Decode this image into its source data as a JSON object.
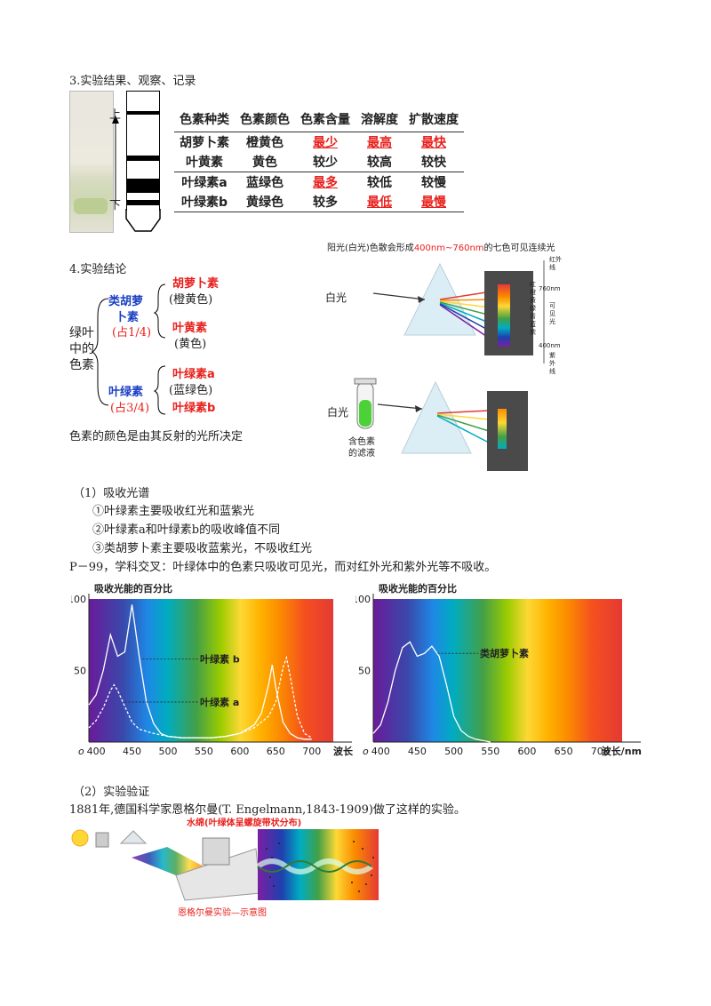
{
  "section3_title": "3.实验结果、观察、记录",
  "strip": {
    "top_label": "上",
    "bottom_label": "下"
  },
  "table": {
    "headers": [
      "色素种类",
      "色素颜色",
      "色素含量",
      "溶解度",
      "扩散速度"
    ],
    "rows": [
      [
        "胡萝卜素",
        "橙黄色",
        "最少",
        "最高",
        "最快"
      ],
      [
        "叶黄素",
        "黄色",
        "较少",
        "较高",
        "较快"
      ],
      [
        "叶绿素a",
        "蓝绿色",
        "最多",
        "较低",
        "较慢"
      ],
      [
        "叶绿素b",
        "黄绿色",
        "较多",
        "最低",
        "最慢"
      ]
    ]
  },
  "prism1": {
    "caption_pre": "阳光(白光)色散会形成",
    "caption_red": "400nm~760nm",
    "caption_post": "的七色可见连续光",
    "white_light": "白光",
    "side_labels": [
      "红外线",
      "红橙黄绿青蓝紫",
      "760nm",
      "可见光",
      "400nm",
      "紫外线"
    ]
  },
  "prism2": {
    "white_light": "白光",
    "tube_label_1": "含色素",
    "tube_label_2": "的滤液"
  },
  "section4_title": "4.实验结论",
  "tree": {
    "root": [
      "绿叶",
      "中的",
      "色素"
    ],
    "group1": {
      "name1": "类胡萝",
      "name2": "卜素",
      "share": "(占1/4)"
    },
    "group2": {
      "name": "叶绿素",
      "share": "(占3/4)"
    },
    "leaves": [
      {
        "name": "胡萝卜素",
        "color": "(橙黄色)"
      },
      {
        "name": "叶黄素",
        "color": "(黄色)"
      },
      {
        "name": "叶绿素a",
        "color": "(蓝绿色)"
      },
      {
        "name": "叶绿素b",
        "color": ""
      }
    ]
  },
  "color_note": "色素的颜色是由其反射的光所决定",
  "absorb": {
    "title": "（1）吸收光谱",
    "items": [
      "①叶绿素主要吸收红光和蓝紫光",
      "②叶绿素a和叶绿素b的吸收峰值不同",
      "③类胡萝卜素主要吸收蓝紫光，不吸收红光"
    ],
    "cross": "P－99，学科交叉：叶绿体中的色素只吸收可见光，而对红外光和紫外光等不吸收。"
  },
  "chart_data": [
    {
      "type": "line",
      "title": "吸收光能的百分比",
      "xlabel": "波长",
      "x_ticks": [
        400,
        450,
        500,
        550,
        600,
        650,
        700
      ],
      "y_ticks": [
        50,
        100
      ],
      "origin_label": "o",
      "xlim": [
        390,
        730
      ],
      "ylim": [
        0,
        100
      ],
      "series": [
        {
          "name": "叶绿素 b",
          "x": [
            390,
            400,
            410,
            420,
            430,
            440,
            450,
            460,
            470,
            480,
            490,
            500,
            520,
            540,
            560,
            580,
            600,
            620,
            630,
            640,
            645,
            650,
            660,
            670,
            680,
            690,
            700
          ],
          "y": [
            26,
            33,
            50,
            75,
            60,
            63,
            96,
            60,
            28,
            13,
            6,
            4,
            3,
            3,
            3,
            4,
            6,
            12,
            20,
            40,
            54,
            38,
            14,
            6,
            3,
            2,
            2
          ]
        },
        {
          "name": "叶绿素 a",
          "x": [
            390,
            400,
            410,
            420,
            425,
            430,
            440,
            450,
            460,
            480,
            500,
            520,
            540,
            560,
            580,
            600,
            620,
            630,
            640,
            650,
            660,
            665,
            670,
            680,
            690,
            700
          ],
          "y": [
            10,
            15,
            24,
            36,
            40,
            36,
            25,
            14,
            9,
            6,
            4,
            3,
            3,
            3,
            4,
            6,
            10,
            14,
            18,
            28,
            52,
            59,
            46,
            18,
            6,
            3
          ]
        }
      ]
    },
    {
      "type": "line",
      "title": "吸收光能的百分比",
      "xlabel": "波长/nm",
      "x_ticks": [
        400,
        450,
        500,
        550,
        600,
        650,
        700
      ],
      "y_ticks": [
        50,
        100
      ],
      "origin_label": "o",
      "xlim": [
        390,
        730
      ],
      "ylim": [
        0,
        100
      ],
      "series": [
        {
          "name": "类胡萝卜素",
          "x": [
            390,
            400,
            410,
            420,
            430,
            440,
            450,
            460,
            470,
            480,
            490,
            500,
            510,
            520,
            530,
            540,
            550
          ],
          "y": [
            6,
            12,
            28,
            50,
            66,
            70,
            60,
            62,
            67,
            60,
            40,
            18,
            8,
            4,
            2,
            1,
            0
          ]
        }
      ]
    }
  ],
  "verify": {
    "title": "（2）实验验证",
    "text": "1881年,德国科学家恩格尔曼(T. Engelmann,1843-1909)做了这样的实验。",
    "water_label": "水绵(叶绿体呈螺旋带状分布)",
    "caption": "恩格尔曼实验—示意图"
  }
}
